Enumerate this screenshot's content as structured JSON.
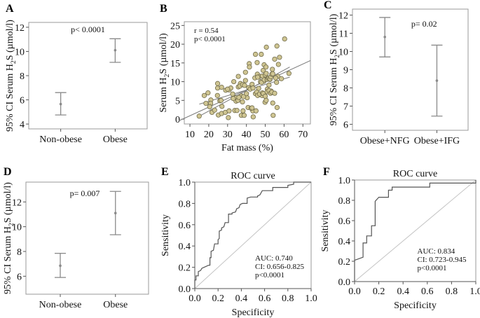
{
  "chart_data": [
    {
      "id": "A",
      "type": "errorbar",
      "panel_label": "A",
      "title": "",
      "ylabel": "95% CI Serum H2S (µmol/l)",
      "ylabel_parts": {
        "pre": "95% CI Serum H",
        "sub": "2",
        "post": "S (µmol/l)"
      },
      "xlabel": "",
      "categories": [
        "Non-obese",
        "Obese"
      ],
      "means": [
        5.65,
        10.1
      ],
      "ci_low": [
        4.75,
        9.1
      ],
      "ci_high": [
        6.6,
        11.05
      ],
      "ylim": [
        3.6,
        12.4
      ],
      "yticks": [
        4,
        6,
        8,
        10,
        12
      ],
      "annotation": "p< 0.0001"
    },
    {
      "id": "B",
      "type": "scatter",
      "panel_label": "B",
      "title": "",
      "ylabel": "Serum H2S (µmol/l)",
      "ylabel_parts": {
        "pre": "Serum H",
        "sub": "2",
        "post": "S (µmol/l)"
      },
      "xlabel": "Fat mass (%)",
      "xlim": [
        7,
        74
      ],
      "ylim": [
        -1.3,
        26
      ],
      "xticks": [
        10,
        20,
        30,
        40,
        50,
        60,
        70
      ],
      "yticks": [
        0,
        5,
        10,
        15,
        20,
        25
      ],
      "annotation_lines": [
        "r =  0.54",
        "p< 0.0001"
      ],
      "regression": {
        "slope": 0.23,
        "intercept": -1.4
      },
      "ci_band_lower": {
        "x": [
          15,
          63
        ],
        "y": [
          4.0,
          11.2
        ]
      },
      "ci_band_upper": {
        "x": [
          15,
          63
        ],
        "y": [
          0.8,
          13.9
        ]
      },
      "points": [
        [
          14.9,
          0.8
        ],
        [
          17.6,
          6.3
        ],
        [
          19.6,
          7.0
        ],
        [
          18.5,
          4.2
        ],
        [
          21.1,
          5.1
        ],
        [
          21.0,
          4.2
        ],
        [
          20.5,
          3.3
        ],
        [
          21.7,
          1.8
        ],
        [
          23.1,
          2.4
        ],
        [
          24.7,
          9.5
        ],
        [
          24.7,
          8.3
        ],
        [
          26.8,
          8.5
        ],
        [
          24.6,
          6.3
        ],
        [
          25.9,
          4.9
        ],
        [
          27.0,
          3.4
        ],
        [
          25.1,
          1.1
        ],
        [
          26.8,
          1.5
        ],
        [
          28.8,
          1.8
        ],
        [
          30.4,
          0.4
        ],
        [
          30.8,
          2.2
        ],
        [
          30.8,
          7.8
        ],
        [
          31.7,
          8.3
        ],
        [
          33.3,
          10.0
        ],
        [
          32.7,
          6.7
        ],
        [
          33.8,
          2.3
        ],
        [
          35.0,
          2.3
        ],
        [
          34.4,
          5.7
        ],
        [
          34.5,
          4.8
        ],
        [
          35.7,
          11.4
        ],
        [
          35.7,
          8.6
        ],
        [
          36.8,
          9.5
        ],
        [
          37.3,
          6.2
        ],
        [
          37.3,
          1.0
        ],
        [
          37.9,
          4.6
        ],
        [
          38.2,
          2.2
        ],
        [
          38.8,
          1.0
        ],
        [
          39.5,
          10.3
        ],
        [
          39.5,
          12.5
        ],
        [
          40.4,
          5.7
        ],
        [
          40.9,
          3.1
        ],
        [
          41.2,
          8.4
        ],
        [
          41.5,
          14.8
        ],
        [
          41.6,
          13.9
        ],
        [
          43.0,
          9.3
        ],
        [
          43.4,
          2.2
        ],
        [
          43.6,
          0.6
        ],
        [
          44.8,
          17.3
        ],
        [
          44.8,
          6.8
        ],
        [
          45.1,
          2.2
        ],
        [
          45.7,
          15.1
        ],
        [
          45.8,
          12.0
        ],
        [
          47.2,
          11.4
        ],
        [
          47.9,
          17.3
        ],
        [
          48.3,
          6.3
        ],
        [
          48.9,
          13.0
        ],
        [
          49.3,
          10.1
        ],
        [
          49.4,
          14.5
        ],
        [
          49.9,
          4.5
        ],
        [
          50.6,
          19.2
        ],
        [
          50.4,
          13.9
        ],
        [
          51.1,
          8.0
        ],
        [
          52.0,
          9.1
        ],
        [
          52.5,
          10.6
        ],
        [
          53.1,
          7.5
        ],
        [
          53.8,
          13.3
        ],
        [
          54.0,
          4.3
        ],
        [
          54.2,
          1.0
        ],
        [
          55.0,
          16.0
        ],
        [
          56.2,
          19.5
        ],
        [
          56.3,
          3.1
        ],
        [
          56.6,
          11.4
        ],
        [
          57.0,
          14.6
        ],
        [
          57.6,
          16.5
        ],
        [
          58.6,
          10.8
        ],
        [
          60.3,
          21.4
        ],
        [
          62.6,
          12.2
        ],
        [
          36.5,
          8.8
        ],
        [
          38.0,
          9.2
        ],
        [
          39.0,
          9.0
        ],
        [
          42.0,
          8.0
        ],
        [
          43.5,
          8.3
        ],
        [
          44.5,
          11.0
        ],
        [
          46.5,
          8.2
        ],
        [
          46.0,
          11.2
        ],
        [
          47.5,
          10.0
        ],
        [
          48.0,
          9.8
        ],
        [
          48.5,
          11.5
        ],
        [
          49.5,
          10.5
        ],
        [
          50.0,
          11.8
        ],
        [
          50.5,
          12.2
        ],
        [
          51.0,
          10.6
        ],
        [
          51.5,
          10.9
        ],
        [
          52.0,
          11.0
        ],
        [
          52.5,
          10.7
        ],
        [
          53.0,
          11.3
        ],
        [
          53.5,
          12.0
        ],
        [
          54.0,
          12.1
        ],
        [
          55.5,
          11.0
        ],
        [
          56.0,
          9.8
        ],
        [
          45.5,
          7.2
        ],
        [
          46.0,
          6.3
        ],
        [
          47.0,
          6.7
        ],
        [
          48.5,
          7.0
        ],
        [
          49.0,
          6.8
        ],
        [
          50.0,
          6.1
        ],
        [
          51.0,
          7.3
        ],
        [
          52.0,
          7.6
        ],
        [
          52.8,
          6.9
        ],
        [
          53.5,
          7.2
        ],
        [
          55.0,
          6.9
        ],
        [
          50.5,
          5.0
        ],
        [
          33.0,
          5.5
        ],
        [
          35.5,
          5.0
        ],
        [
          36.0,
          5.8
        ],
        [
          38.5,
          6.0
        ],
        [
          40.0,
          6.8
        ],
        [
          42.5,
          2.9
        ],
        [
          43.0,
          3.0
        ],
        [
          29.0,
          7.7
        ],
        [
          30.0,
          8.0
        ],
        [
          26.5,
          5.0
        ]
      ]
    },
    {
      "id": "C",
      "type": "errorbar",
      "panel_label": "C",
      "title": "",
      "ylabel": "95% CI Serum H2S (µmol/l)",
      "ylabel_parts": {
        "pre": "95% CI Serum H",
        "sub": "2",
        "post": "S (µmol/l)"
      },
      "xlabel": "",
      "categories": [
        "Obese+NFG",
        "Obese+IFG"
      ],
      "means": [
        10.8,
        8.4
      ],
      "ci_low": [
        9.7,
        6.45
      ],
      "ci_high": [
        11.87,
        10.35
      ],
      "ylim": [
        5.67,
        12.33
      ],
      "yticks": [
        6,
        7,
        8,
        9,
        10,
        11,
        12
      ],
      "annotation": "p= 0.02"
    },
    {
      "id": "D",
      "type": "errorbar",
      "panel_label": "D",
      "title": "",
      "ylabel": "95% CI Serum H2S (µmol/l)",
      "ylabel_parts": {
        "pre": "95% CI Serum H",
        "sub": "2",
        "post": "S (µmol/l)"
      },
      "xlabel": "",
      "categories": [
        "Non-obese",
        "Obese"
      ],
      "means": [
        6.85,
        11.1
      ],
      "ci_low": [
        5.9,
        9.35
      ],
      "ci_high": [
        7.85,
        12.85
      ],
      "ylim": [
        4.55,
        13.6
      ],
      "yticks": [
        6,
        8,
        10,
        12
      ],
      "annotation": "p= 0.007"
    },
    {
      "id": "E",
      "type": "line",
      "panel_label": "E",
      "title": "ROC curve",
      "xlabel": "Specificity",
      "ylabel": "Sensitivity",
      "xlim": [
        0,
        1
      ],
      "ylim": [
        0,
        1
      ],
      "xticks": [
        "0.0",
        "0.2",
        "0.4",
        "0.6",
        "0.8",
        "1.0"
      ],
      "yticks": [
        "0.0",
        "0.2",
        "0.4",
        "0.6",
        "0.8",
        "1.0"
      ],
      "annotation_lines": [
        "AUC: 0.740",
        "CI: 0.656-0.825",
        "p<0.0001"
      ],
      "auc": 0.74,
      "ci": [
        0.656,
        0.825
      ],
      "p": "<0.0001",
      "curve": [
        [
          0,
          0
        ],
        [
          0,
          0.08
        ],
        [
          0.01,
          0.08
        ],
        [
          0.01,
          0.12
        ],
        [
          0.03,
          0.12
        ],
        [
          0.03,
          0.16
        ],
        [
          0.05,
          0.17
        ],
        [
          0.06,
          0.19
        ],
        [
          0.08,
          0.2
        ],
        [
          0.12,
          0.22
        ],
        [
          0.13,
          0.22
        ],
        [
          0.13,
          0.29
        ],
        [
          0.14,
          0.29
        ],
        [
          0.14,
          0.35
        ],
        [
          0.16,
          0.36
        ],
        [
          0.17,
          0.42
        ],
        [
          0.2,
          0.42
        ],
        [
          0.2,
          0.46
        ],
        [
          0.21,
          0.47
        ],
        [
          0.21,
          0.54
        ],
        [
          0.23,
          0.55
        ],
        [
          0.23,
          0.57
        ],
        [
          0.25,
          0.58
        ],
        [
          0.26,
          0.62
        ],
        [
          0.29,
          0.62
        ],
        [
          0.29,
          0.7
        ],
        [
          0.32,
          0.7
        ],
        [
          0.32,
          0.71
        ],
        [
          0.35,
          0.72
        ],
        [
          0.36,
          0.75
        ],
        [
          0.38,
          0.76
        ],
        [
          0.39,
          0.79
        ],
        [
          0.41,
          0.8
        ],
        [
          0.45,
          0.8
        ],
        [
          0.45,
          0.85
        ],
        [
          0.48,
          0.86
        ],
        [
          0.54,
          0.86
        ],
        [
          0.54,
          0.87
        ],
        [
          0.56,
          0.88
        ],
        [
          0.57,
          0.9
        ],
        [
          0.58,
          0.92
        ],
        [
          0.67,
          0.92
        ],
        [
          0.67,
          0.95
        ],
        [
          0.8,
          0.95
        ],
        [
          0.8,
          0.97
        ],
        [
          0.85,
          0.98
        ],
        [
          0.85,
          1.0
        ],
        [
          1,
          1
        ]
      ],
      "reference_line": [
        [
          0,
          0
        ],
        [
          1,
          1
        ]
      ]
    },
    {
      "id": "F",
      "type": "line",
      "panel_label": "F",
      "title": "ROC curve",
      "xlabel": "Specificity",
      "ylabel": "Sensitivity",
      "xlim": [
        0,
        1
      ],
      "ylim": [
        0,
        1
      ],
      "xticks": [
        "0.0",
        "0.2",
        "0.4",
        "0.6",
        "0.8",
        "1.0"
      ],
      "yticks": [
        "0.0",
        "0.2",
        "0.4",
        "0.6",
        "0.8",
        "1.0"
      ],
      "annotation_lines": [
        "AUC: 0.834",
        "CI: 0.723-0.945",
        "p<0.0001"
      ],
      "auc": 0.834,
      "ci": [
        0.723,
        0.945
      ],
      "p": "<0.0001",
      "curve": [
        [
          0,
          0
        ],
        [
          0,
          0.21
        ],
        [
          0.07,
          0.24
        ],
        [
          0.07,
          0.38
        ],
        [
          0.1,
          0.38
        ],
        [
          0.1,
          0.45
        ],
        [
          0.14,
          0.45
        ],
        [
          0.14,
          0.55
        ],
        [
          0.17,
          0.55
        ],
        [
          0.17,
          0.79
        ],
        [
          0.2,
          0.83
        ],
        [
          0.28,
          0.83
        ],
        [
          0.28,
          0.9
        ],
        [
          0.31,
          0.9
        ],
        [
          0.31,
          0.93
        ],
        [
          0.62,
          0.93
        ],
        [
          0.62,
          0.97
        ],
        [
          1,
          0.97
        ],
        [
          1,
          1
        ]
      ],
      "reference_line": [
        [
          0,
          0
        ],
        [
          1,
          1
        ]
      ]
    }
  ]
}
